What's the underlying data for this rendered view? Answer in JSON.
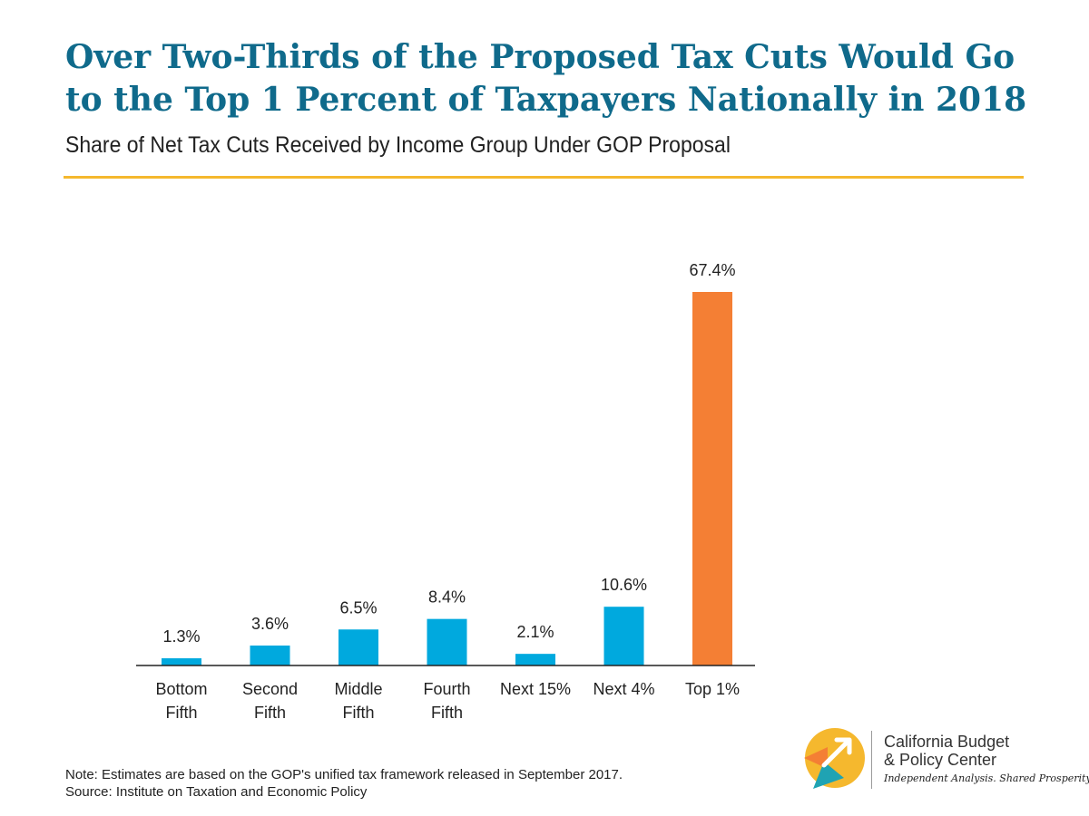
{
  "header": {
    "title": "Over Two-Thirds of the Proposed Tax Cuts Would Go to the Top 1 Percent of Taxpayers Nationally in 2018",
    "subtitle": "Share of Net Tax Cuts Received by Income Group Under GOP Proposal"
  },
  "colors": {
    "title": "#0f6a8b",
    "rule": "#f5b82e",
    "bar": "#00a9de",
    "highlight_bar": "#f47f34"
  },
  "chart_data": {
    "type": "bar",
    "title": "Share of Net Tax Cuts Received by Income Group Under GOP Proposal",
    "categories": [
      [
        "Bottom",
        "Fifth"
      ],
      [
        "Second",
        "Fifth"
      ],
      [
        "Middle",
        "Fifth"
      ],
      [
        "Fourth",
        "Fifth"
      ],
      [
        "Next 15%"
      ],
      [
        "Next 4%"
      ],
      [
        "Top 1%"
      ]
    ],
    "values": [
      1.3,
      3.6,
      6.5,
      8.4,
      2.1,
      10.6,
      67.4
    ],
    "labels": [
      "1.3%",
      "3.6%",
      "6.5%",
      "8.4%",
      "2.1%",
      "10.6%",
      "67.4%"
    ],
    "highlight_index": 6,
    "unit": "%",
    "xlabel": "",
    "ylabel": "",
    "ylim": [
      0,
      67.4
    ],
    "grid": false,
    "legend": "none"
  },
  "footer": {
    "note": "Note: Estimates are based on the GOP's unified tax framework released in September 2017.",
    "source": "Source: Institute on Taxation and Economic Policy"
  },
  "logo": {
    "name_line1": "California Budget",
    "name_line2": "& Policy Center",
    "tagline": "Independent Analysis. Shared Prosperity.",
    "colors": [
      "#f5b82e",
      "#f47f34",
      "#1fa3b3"
    ]
  }
}
